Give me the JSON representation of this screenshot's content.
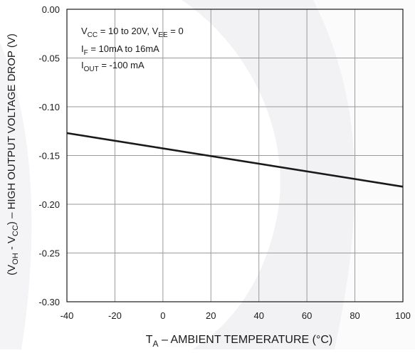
{
  "chart_data": {
    "type": "line",
    "x_axis": {
      "label_main": "T",
      "label_sub": "A",
      "label_rest": " – AMBIENT TEMPERATURE (°C)",
      "range": [
        -40,
        100
      ],
      "ticks": [
        -40,
        -20,
        0,
        20,
        40,
        60,
        80,
        100
      ],
      "tick_labels": [
        "-40",
        "-20",
        "0",
        "20",
        "40",
        "60",
        "80",
        "100"
      ]
    },
    "y_axis": {
      "label_parts": [
        "(V",
        "OH",
        " - V",
        "CC",
        ") – HIGH OUTPUT VOLTAGE DROP (V)"
      ],
      "range": [
        -0.3,
        0.0
      ],
      "ticks": [
        0,
        -0.05,
        -0.1,
        -0.15,
        -0.2,
        -0.25,
        -0.3
      ],
      "tick_labels": [
        "0.00",
        "-0.05",
        "-0.10",
        "-0.15",
        "-0.20",
        "-0.25",
        "-0.30"
      ]
    },
    "grid": true,
    "series": [
      {
        "x": [
          -40,
          100
        ],
        "y": [
          -0.127,
          -0.182
        ],
        "color": "#1a1a1a"
      }
    ],
    "annotations": {
      "line1": {
        "a": "V",
        "b": "CC",
        "c": " = 10 to 20V, V",
        "d": "EE",
        "e": " = 0"
      },
      "line2": {
        "a": "I",
        "b": "F",
        "c": " = 10mA to 16mA"
      },
      "line3": {
        "a": "I",
        "b": "OUT",
        "c": " = -100 mA"
      }
    }
  }
}
